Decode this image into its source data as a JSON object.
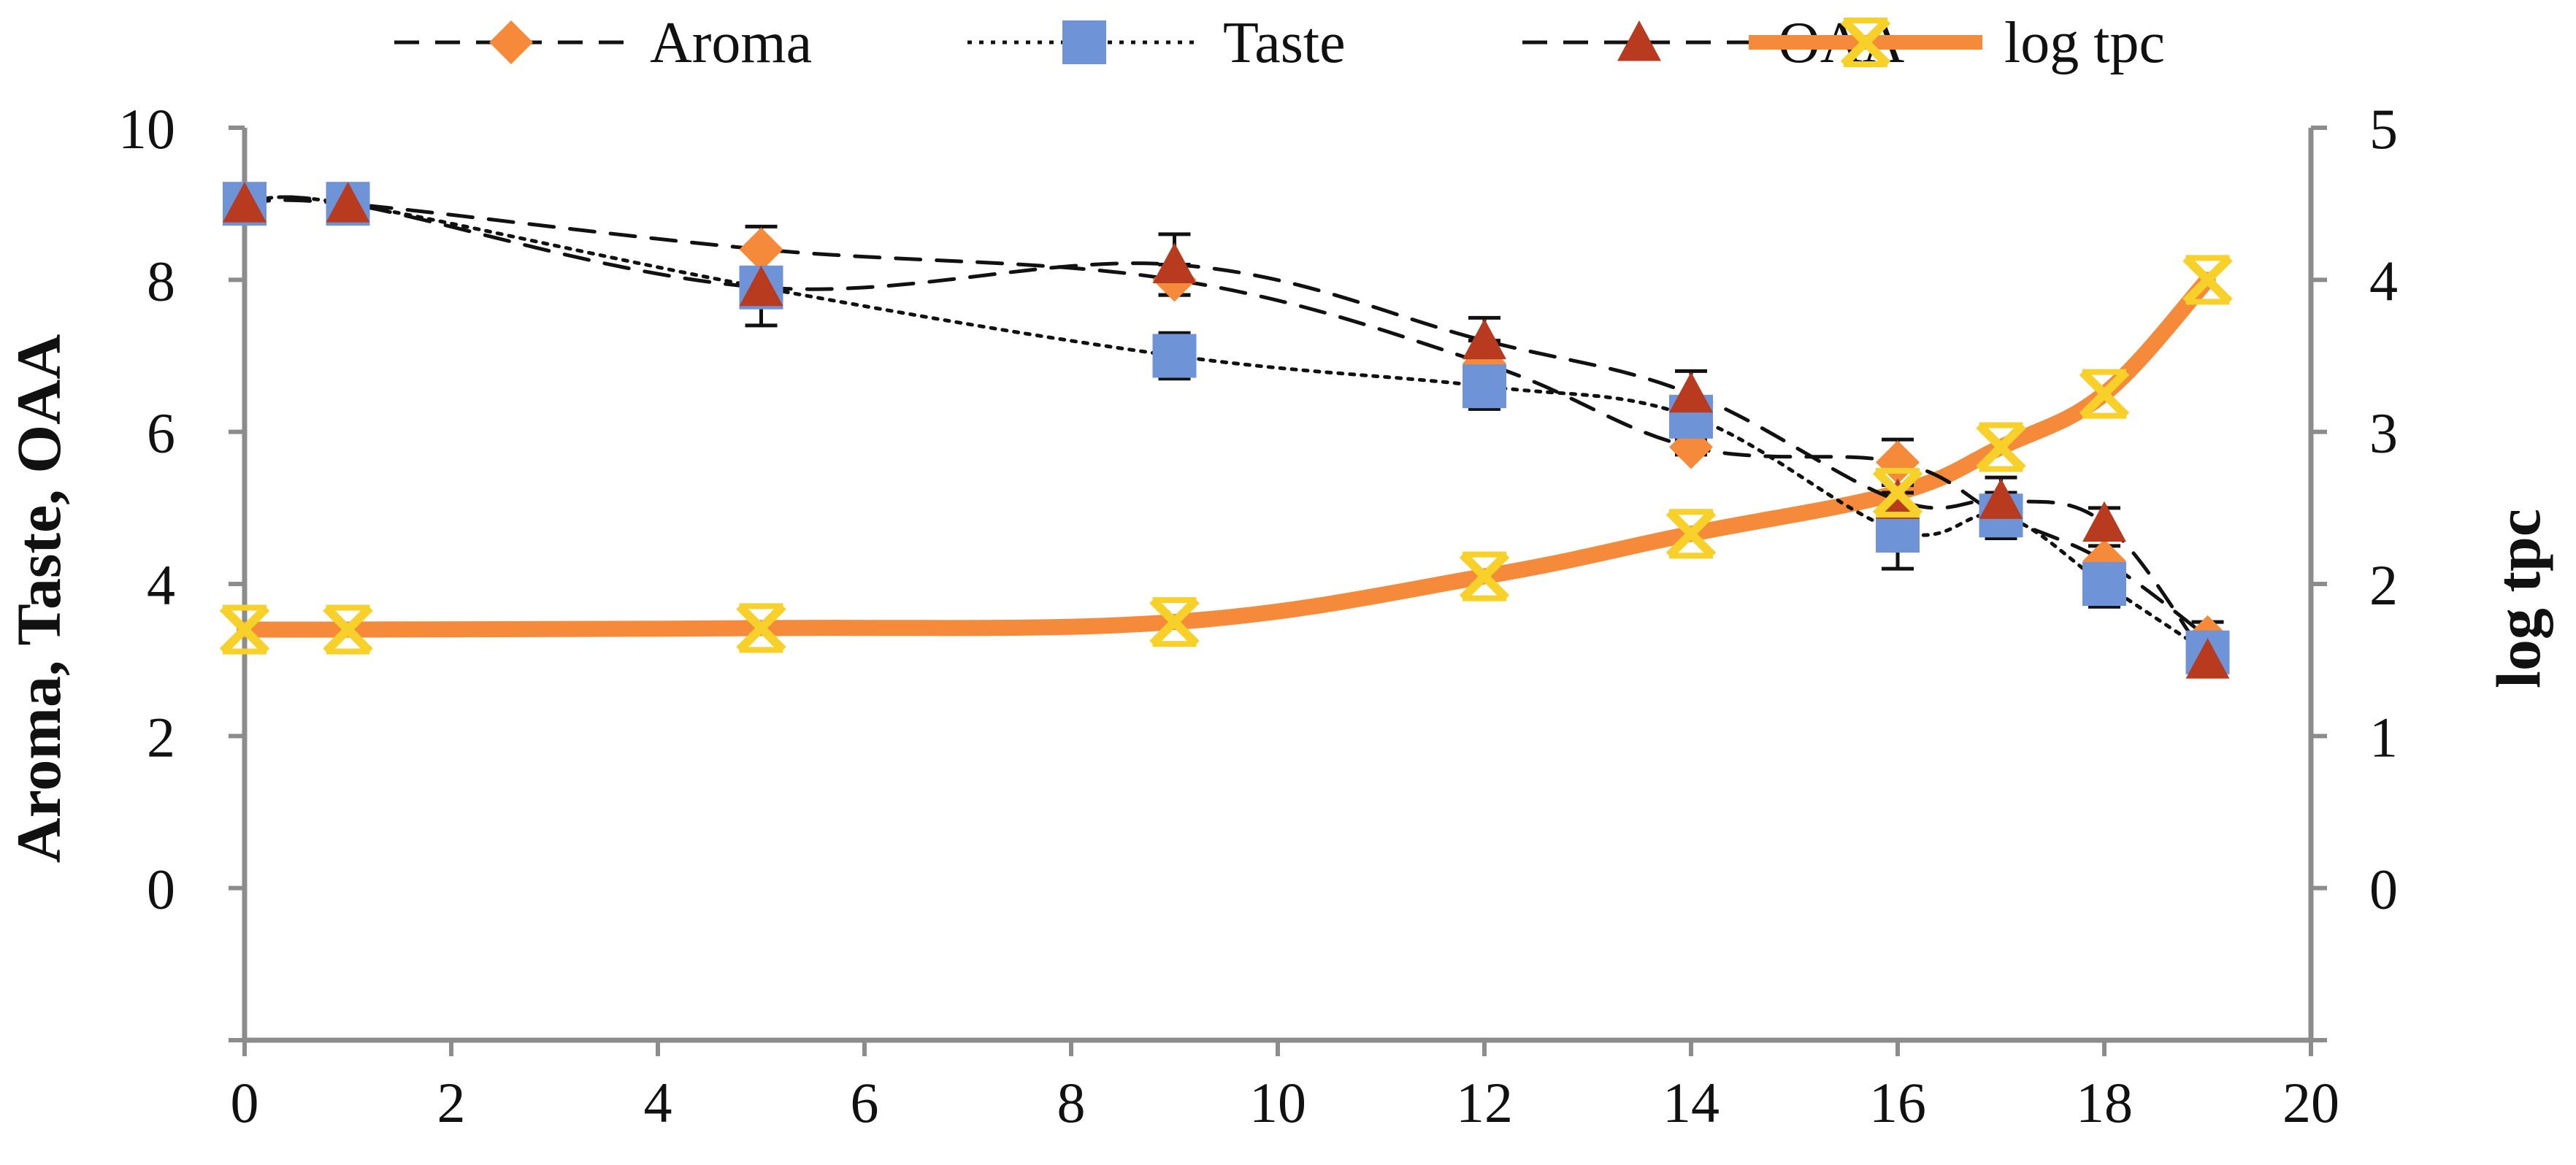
{
  "chart_data": {
    "type": "line",
    "title": "",
    "xlabel": "",
    "ylabel": "Aroma,  Taste,  OAA",
    "y2label": "log tpc",
    "xlim": [
      0,
      20
    ],
    "ylim": [
      -2,
      10
    ],
    "y2lim": [
      -1,
      5
    ],
    "x_ticks": [
      0,
      2,
      4,
      6,
      8,
      10,
      12,
      14,
      16,
      18,
      20
    ],
    "x_tick_labels": [
      "0",
      "2",
      "4",
      "6",
      "8",
      "10",
      "12",
      "14",
      "16",
      "18",
      "20"
    ],
    "y_ticks": [
      0,
      2,
      4,
      6,
      8,
      10
    ],
    "y_tick_labels": [
      "0",
      "2",
      "4",
      "6",
      "8",
      "10"
    ],
    "y2_ticks": [
      0,
      1,
      2,
      3,
      4,
      5
    ],
    "y2_tick_labels": [
      "0",
      "1",
      "2",
      "3",
      "4",
      "5"
    ],
    "legend_position": "top",
    "series": [
      {
        "name": "Aroma",
        "axis": "left",
        "line_style": "dashed",
        "marker": "diamond",
        "color": "#F58A3A",
        "x": [
          0,
          1,
          5,
          9,
          12,
          14,
          16,
          17,
          18,
          19
        ],
        "values": [
          9.0,
          9.0,
          8.4,
          8.0,
          6.9,
          5.8,
          5.6,
          4.9,
          4.3,
          3.3
        ],
        "error": [
          0,
          0,
          0.3,
          0.2,
          0.3,
          0.1,
          0.3,
          0.2,
          0.2,
          0.2
        ]
      },
      {
        "name": "Taste",
        "axis": "left",
        "line_style": "dotted",
        "marker": "square",
        "color": "#6E93D6",
        "x": [
          0,
          1,
          5,
          9,
          12,
          14,
          16,
          17,
          18,
          19
        ],
        "values": [
          9.0,
          9.0,
          7.9,
          7.0,
          6.6,
          6.2,
          4.7,
          4.9,
          4.0,
          3.1
        ],
        "error": [
          0,
          0,
          0.2,
          0.3,
          0.3,
          0.2,
          0.5,
          0.3,
          0.3,
          0.2
        ]
      },
      {
        "name": "OAA",
        "axis": "left",
        "line_style": "dashed",
        "marker": "triangle",
        "color": "#B83A1F",
        "x": [
          0,
          1,
          5,
          9,
          12,
          14,
          16,
          17,
          18,
          19
        ],
        "values": [
          9.0,
          9.0,
          7.9,
          8.2,
          7.2,
          6.5,
          5.1,
          5.1,
          4.8,
          3.0
        ],
        "error": [
          0,
          0,
          0.5,
          0.4,
          0.3,
          0.3,
          0.5,
          0.3,
          0.2,
          0.2
        ]
      },
      {
        "name": "log tpc",
        "axis": "right",
        "line_style": "solid",
        "marker": "star-x",
        "color": "#F58A3A",
        "marker_color": "#F8D02A",
        "x": [
          0,
          1,
          5,
          9,
          12,
          14,
          16,
          17,
          18,
          19
        ],
        "values": [
          1.7,
          1.7,
          1.71,
          1.75,
          2.05,
          2.33,
          2.6,
          2.9,
          3.25,
          4.0
        ],
        "error": []
      }
    ]
  }
}
